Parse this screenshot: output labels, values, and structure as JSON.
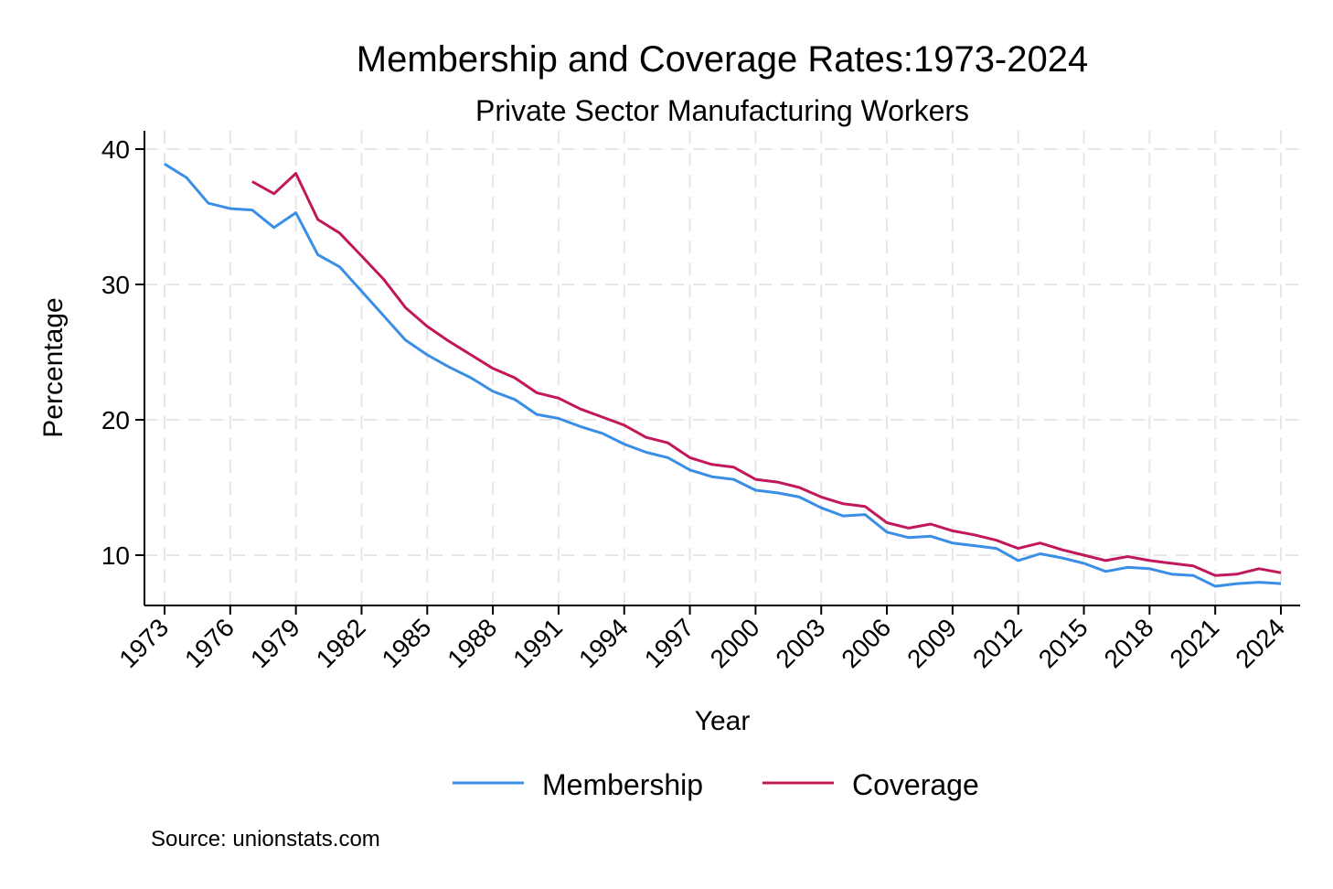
{
  "chart_data": {
    "type": "line",
    "title": "Membership and Coverage Rates:1973-2024",
    "subtitle": "Private Sector Manufacturing Workers",
    "xlabel": "Year",
    "ylabel": "Percentage",
    "source": "Source: unionstats.com",
    "xlim": [
      1973,
      2024
    ],
    "ylim": [
      6,
      41.5
    ],
    "x_ticks": [
      1973,
      1976,
      1979,
      1982,
      1985,
      1988,
      1991,
      1994,
      1997,
      2000,
      2003,
      2006,
      2009,
      2012,
      2015,
      2018,
      2021,
      2024
    ],
    "y_ticks": [
      10,
      20,
      30,
      40
    ],
    "grid": true,
    "legend_position": "bottom",
    "series": [
      {
        "name": "Membership",
        "color": "#3a8ee6",
        "x": [
          1973,
          1974,
          1975,
          1976,
          1977,
          1978,
          1979,
          1980,
          1981,
          1982,
          1983,
          1984,
          1985,
          1986,
          1987,
          1988,
          1989,
          1990,
          1991,
          1992,
          1993,
          1994,
          1995,
          1996,
          1997,
          1998,
          1999,
          2000,
          2001,
          2002,
          2003,
          2004,
          2005,
          2006,
          2007,
          2008,
          2009,
          2010,
          2011,
          2012,
          2013,
          2014,
          2015,
          2016,
          2017,
          2018,
          2019,
          2020,
          2021,
          2022,
          2023,
          2024
        ],
        "values": [
          38.9,
          37.9,
          36.0,
          35.6,
          35.5,
          34.2,
          35.3,
          32.2,
          31.3,
          29.5,
          27.7,
          25.9,
          24.8,
          23.9,
          23.1,
          22.1,
          21.5,
          20.4,
          20.1,
          19.5,
          19.0,
          18.2,
          17.6,
          17.2,
          16.3,
          15.8,
          15.6,
          14.8,
          14.6,
          14.3,
          13.5,
          12.9,
          13.0,
          11.7,
          11.3,
          11.4,
          10.9,
          10.7,
          10.5,
          9.6,
          10.1,
          9.8,
          9.4,
          8.8,
          9.1,
          9.0,
          8.6,
          8.5,
          7.7,
          7.9,
          8.0,
          7.9
        ]
      },
      {
        "name": "Coverage",
        "color": "#c2185b",
        "x": [
          1977,
          1978,
          1979,
          1980,
          1981,
          1982,
          1983,
          1984,
          1985,
          1986,
          1987,
          1988,
          1989,
          1990,
          1991,
          1992,
          1993,
          1994,
          1995,
          1996,
          1997,
          1998,
          1999,
          2000,
          2001,
          2002,
          2003,
          2004,
          2005,
          2006,
          2007,
          2008,
          2009,
          2010,
          2011,
          2012,
          2013,
          2014,
          2015,
          2016,
          2017,
          2018,
          2019,
          2020,
          2021,
          2022,
          2023,
          2024
        ],
        "values": [
          37.6,
          36.7,
          38.2,
          34.8,
          33.8,
          32.1,
          30.4,
          28.3,
          26.9,
          25.8,
          24.8,
          23.8,
          23.1,
          22.0,
          21.6,
          20.8,
          20.2,
          19.6,
          18.7,
          18.3,
          17.2,
          16.7,
          16.5,
          15.6,
          15.4,
          15.0,
          14.3,
          13.8,
          13.6,
          12.4,
          12.0,
          12.3,
          11.8,
          11.5,
          11.1,
          10.5,
          10.9,
          10.4,
          10.0,
          9.6,
          9.9,
          9.6,
          9.4,
          9.2,
          8.5,
          8.6,
          9.0,
          8.7
        ]
      }
    ]
  }
}
